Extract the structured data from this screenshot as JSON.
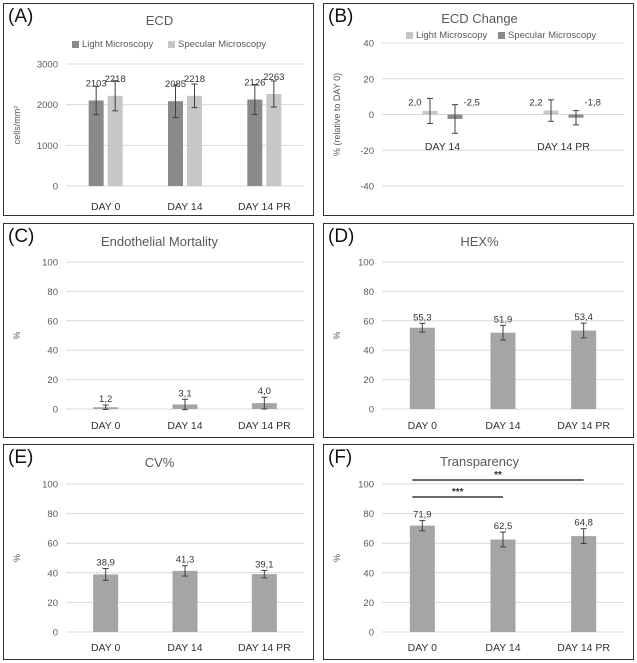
{
  "colors": {
    "light": "#8a8a8a",
    "specular": "#c6c6c6",
    "single": "#a5a5a5",
    "axis_text": "#595959",
    "grid": "#d9d9d9",
    "error": "#404040"
  },
  "chart_data": [
    {
      "panel_label": "(A)",
      "type": "bar",
      "title": "ECD",
      "ylabel": "cells/mm²",
      "xlabel": "",
      "ylim": [
        0,
        3000
      ],
      "yticks": [
        "0",
        "1000",
        "2000",
        "3000"
      ],
      "ytick_values": [
        0,
        1000,
        2000,
        3000
      ],
      "grid": true,
      "legend": "top",
      "categories": [
        "DAY 0",
        "DAY 14",
        "DAY 14 PR"
      ],
      "series": [
        {
          "name": "Light Microscopy",
          "color_key": "light",
          "values": [
            2103,
            2085,
            2126
          ],
          "labels": [
            "2103",
            "2085",
            "2126"
          ],
          "errors": [
            350,
            400,
            370
          ]
        },
        {
          "name": "Specular Microscopy",
          "color_key": "specular",
          "values": [
            2218,
            2218,
            2263
          ],
          "labels": [
            "2218",
            "2218",
            "2263"
          ],
          "errors": [
            370,
            290,
            320
          ]
        }
      ]
    },
    {
      "panel_label": "(B)",
      "type": "bar",
      "title": "ECD Change",
      "ylabel": "% (relative to DAY 0)",
      "xlabel": "",
      "ylim": [
        -40,
        40
      ],
      "yticks": [
        "-40",
        "-20",
        "0",
        "20",
        "40"
      ],
      "ytick_values": [
        -40,
        -20,
        0,
        20,
        40
      ],
      "grid": true,
      "legend": "top",
      "categories": [
        "DAY 14",
        "DAY 14 PR"
      ],
      "series": [
        {
          "name": "Light Microscopy",
          "color_key": "specular",
          "values": [
            2.0,
            2.2
          ],
          "labels": [
            "2,0",
            "2,2"
          ],
          "errors": [
            7,
            6
          ]
        },
        {
          "name": "Specular Microscopy",
          "color_key": "light",
          "values": [
            -2.5,
            -1.8
          ],
          "labels": [
            "-2,5",
            "-1,8"
          ],
          "errors": [
            8,
            4
          ]
        }
      ]
    },
    {
      "panel_label": "(C)",
      "type": "bar",
      "title": "Endothelial Mortality",
      "ylabel": "%",
      "xlabel": "",
      "ylim": [
        0,
        100
      ],
      "yticks": [
        "0",
        "20",
        "40",
        "60",
        "80",
        "100"
      ],
      "ytick_values": [
        0,
        20,
        40,
        60,
        80,
        100
      ],
      "grid": true,
      "categories": [
        "DAY 0",
        "DAY 14",
        "DAY 14 PR"
      ],
      "series": [
        {
          "name": "Endothelial Mortality",
          "color_key": "single",
          "values": [
            1.2,
            3.1,
            4.0
          ],
          "labels": [
            "1,2",
            "3,1",
            "4,0"
          ],
          "errors": [
            1.5,
            3.5,
            4.0
          ]
        }
      ]
    },
    {
      "panel_label": "(D)",
      "type": "bar",
      "title": "HEX%",
      "ylabel": "%",
      "xlabel": "",
      "ylim": [
        0,
        100
      ],
      "yticks": [
        "0",
        "20",
        "40",
        "60",
        "80",
        "100"
      ],
      "ytick_values": [
        0,
        20,
        40,
        60,
        80,
        100
      ],
      "grid": true,
      "categories": [
        "DAY 0",
        "DAY 14",
        "DAY 14 PR"
      ],
      "series": [
        {
          "name": "HEX%",
          "color_key": "single",
          "values": [
            55.3,
            51.9,
            53.4
          ],
          "labels": [
            "55,3",
            "51,9",
            "53,4"
          ],
          "errors": [
            3,
            5,
            5
          ]
        }
      ]
    },
    {
      "panel_label": "(E)",
      "type": "bar",
      "title": "CV%",
      "ylabel": "%",
      "xlabel": "",
      "ylim": [
        0,
        100
      ],
      "yticks": [
        "0",
        "20",
        "40",
        "60",
        "80",
        "100"
      ],
      "ytick_values": [
        0,
        20,
        40,
        60,
        80,
        100
      ],
      "grid": true,
      "categories": [
        "DAY 0",
        "DAY 14",
        "DAY 14 PR"
      ],
      "series": [
        {
          "name": "CV%",
          "color_key": "single",
          "values": [
            38.9,
            41.3,
            39.1
          ],
          "labels": [
            "38,9",
            "41,3",
            "39,1"
          ],
          "errors": [
            4,
            3.5,
            2.5
          ]
        }
      ]
    },
    {
      "panel_label": "(F)",
      "type": "bar",
      "title": "Transparency",
      "ylabel": "%",
      "xlabel": "",
      "ylim": [
        0,
        100
      ],
      "yticks": [
        "0",
        "20",
        "40",
        "60",
        "80",
        "100"
      ],
      "ytick_values": [
        0,
        20,
        40,
        60,
        80,
        100
      ],
      "grid": true,
      "categories": [
        "DAY 0",
        "DAY 14",
        "DAY 14 PR"
      ],
      "series": [
        {
          "name": "Transparency",
          "color_key": "single",
          "values": [
            71.9,
            62.5,
            64.8
          ],
          "labels": [
            "71,9",
            "62,5",
            "64,8"
          ],
          "errors": [
            3.5,
            5,
            5
          ]
        }
      ],
      "significance": [
        {
          "from": 0,
          "to": 1,
          "label": "***"
        },
        {
          "from": 0,
          "to": 2,
          "label": "**"
        }
      ]
    }
  ]
}
